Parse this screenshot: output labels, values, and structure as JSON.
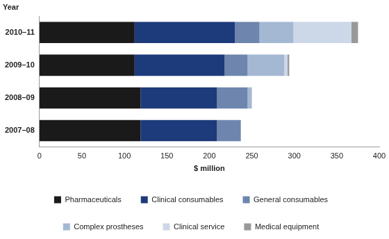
{
  "chart_data": {
    "type": "bar",
    "orientation": "horizontal",
    "stacked": true,
    "y_label": "Year",
    "x_label": "$ million",
    "categories": [
      "2010–11",
      "2009–10",
      "2008–09",
      "2007–08"
    ],
    "series": [
      {
        "name": "Pharmaceuticals",
        "color": "#1a1a1a",
        "values": [
          112,
          112,
          119,
          119
        ]
      },
      {
        "name": "Clinical consumables",
        "color": "#1d3a7a",
        "values": [
          118,
          106,
          90,
          90
        ]
      },
      {
        "name": "General consumables",
        "color": "#6e86ad",
        "values": [
          29,
          27,
          36,
          28
        ]
      },
      {
        "name": "Complex prostheses",
        "color": "#a4b8d4",
        "values": [
          40,
          43,
          5,
          0
        ]
      },
      {
        "name": "Clinical service",
        "color": "#ccd8e7",
        "values": [
          68,
          4,
          0,
          0
        ]
      },
      {
        "name": "Medical equipment",
        "color": "#999999",
        "values": [
          8,
          2,
          0,
          0
        ]
      }
    ],
    "xlim": [
      0,
      400
    ],
    "xticks": [
      0,
      50,
      100,
      150,
      200,
      250,
      300,
      350,
      400
    ],
    "grid": false,
    "legend": "bottom"
  }
}
